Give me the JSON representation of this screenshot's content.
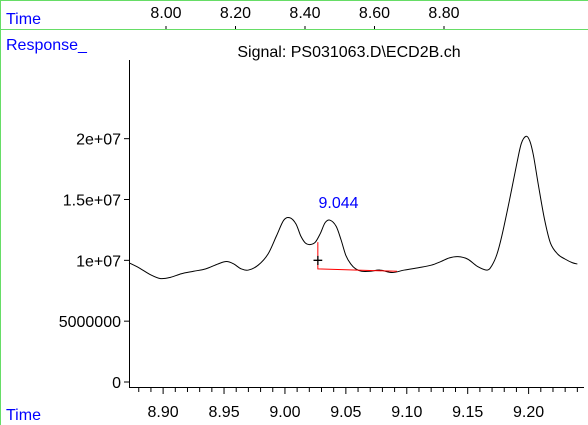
{
  "chart_data": {
    "type": "line",
    "title": "Signal: PS031063.D\\ECD2B.ch",
    "top_axis": {
      "label": "Time",
      "ticks": [
        8.0,
        8.2,
        8.4,
        8.6,
        8.8
      ],
      "tick_labels": [
        "8.00",
        "8.20",
        "8.40",
        "8.60",
        "8.80"
      ]
    },
    "y_axis": {
      "label": "Response_",
      "ylim": [
        0,
        24000000
      ],
      "ticks": [
        0,
        5000000,
        10000000,
        15000000,
        20000000
      ],
      "tick_labels": [
        "0",
        "5000000",
        "1e+07",
        "1.5e+07",
        "2e+07"
      ]
    },
    "x_axis": {
      "label": "Time",
      "xlim": [
        8.872,
        9.243
      ],
      "ticks": [
        8.9,
        8.95,
        9.0,
        9.05,
        9.1,
        9.15,
        9.2
      ],
      "tick_labels": [
        "8.90",
        "8.95",
        "9.00",
        "9.05",
        "9.10",
        "9.15",
        "9.20"
      ],
      "minor_step": 0.01
    },
    "series": [
      {
        "color": "#000000",
        "x": [
          8.872,
          8.88,
          8.89,
          8.898,
          8.906,
          8.915,
          8.925,
          8.935,
          8.945,
          8.952,
          8.958,
          8.964,
          8.97,
          8.978,
          8.986,
          8.993,
          8.999,
          9.004,
          9.009,
          9.013,
          9.017,
          9.021,
          9.025,
          9.029,
          9.033,
          9.037,
          9.042,
          9.046,
          9.05,
          9.054,
          9.058,
          9.063,
          9.07,
          9.078,
          9.088,
          9.098,
          9.11,
          9.12,
          9.128,
          9.135,
          9.142,
          9.15,
          9.158,
          9.166,
          9.17,
          9.174,
          9.178,
          9.184,
          9.19,
          9.194,
          9.198,
          9.201,
          9.204,
          9.208,
          9.213,
          9.218,
          9.224,
          9.23,
          9.236,
          9.24
        ],
        "y": [
          9800000,
          9400000,
          8800000,
          8500000,
          8600000,
          8900000,
          9100000,
          9300000,
          9700000,
          9900000,
          9700000,
          9300000,
          9200000,
          9600000,
          10500000,
          12000000,
          13300000,
          13500000,
          13000000,
          12000000,
          11400000,
          11300000,
          11500000,
          12200000,
          13100000,
          13300000,
          12800000,
          11700000,
          10400000,
          9700000,
          9300000,
          9100000,
          9100000,
          9200000,
          9000000,
          9200000,
          9400000,
          9600000,
          9900000,
          10200000,
          10300000,
          10100000,
          9500000,
          9200000,
          9600000,
          10500000,
          12000000,
          14800000,
          17800000,
          19600000,
          20200000,
          19800000,
          18600000,
          16200000,
          13400000,
          11400000,
          10500000,
          10100000,
          9800000,
          9700000
        ]
      }
    ],
    "peak_label": {
      "text": "9.044",
      "x": 9.044,
      "y": 13300000,
      "color": "#0000ff"
    },
    "baseline": {
      "color": "#ff0000",
      "x": [
        9.027,
        9.027,
        9.092
      ],
      "y": [
        11500000,
        9300000,
        9100000
      ]
    },
    "marker": {
      "symbol": "+",
      "x": 9.027,
      "y": 10000000
    },
    "colors": {
      "frame_lines": "#66dd66",
      "label_text": "#0000ff"
    },
    "grid": false
  }
}
